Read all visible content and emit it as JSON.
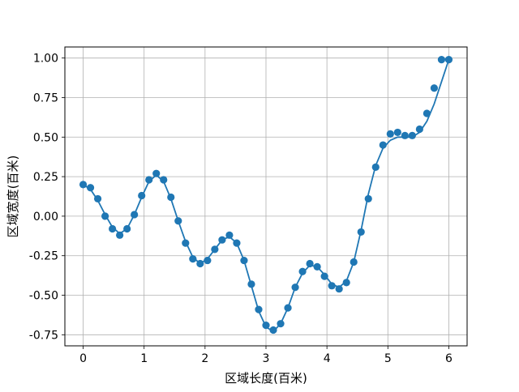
{
  "chart_data": {
    "type": "scatter",
    "title": "",
    "xlabel": "区域长度(百米)",
    "ylabel": "区域宽度(百米)",
    "xlim": [
      -0.3,
      6.3
    ],
    "ylim": [
      -0.82,
      1.07
    ],
    "grid": true,
    "xticks": [
      0,
      1,
      2,
      3,
      4,
      5,
      6
    ],
    "xtick_labels": [
      "0",
      "1",
      "2",
      "3",
      "4",
      "5",
      "6"
    ],
    "yticks": [
      1.0,
      0.75,
      0.5,
      0.25,
      0.0,
      -0.25,
      -0.5,
      -0.75
    ],
    "ytick_labels": [
      "1.00",
      "0.75",
      "0.50",
      "0.25",
      "0.00",
      "-0.25",
      "-0.50",
      "-0.75"
    ],
    "series": [
      {
        "kind": "scatter",
        "color": "#1f77b4",
        "x": [
          0.0,
          0.12,
          0.24,
          0.36,
          0.48,
          0.6,
          0.72,
          0.84,
          0.96,
          1.08,
          1.2,
          1.32,
          1.44,
          1.56,
          1.68,
          1.8,
          1.92,
          2.04,
          2.16,
          2.28,
          2.4,
          2.52,
          2.64,
          2.76,
          2.88,
          3.0,
          3.12,
          3.24,
          3.36,
          3.48,
          3.6,
          3.72,
          3.84,
          3.96,
          4.08,
          4.2,
          4.32,
          4.44,
          4.56,
          4.68,
          4.8,
          4.92,
          5.04,
          5.16,
          5.28,
          5.4,
          5.52,
          5.64,
          5.76,
          5.88,
          6.0
        ],
        "y": [
          0.2,
          0.18,
          0.11,
          0.0,
          -0.08,
          -0.12,
          -0.08,
          0.01,
          0.13,
          0.23,
          0.27,
          0.23,
          0.12,
          -0.03,
          -0.17,
          -0.27,
          -0.3,
          -0.28,
          -0.21,
          -0.15,
          -0.12,
          -0.17,
          -0.28,
          -0.43,
          -0.59,
          -0.69,
          -0.72,
          -0.68,
          -0.58,
          -0.45,
          -0.35,
          -0.3,
          -0.32,
          -0.38,
          -0.44,
          -0.46,
          -0.42,
          -0.29,
          -0.1,
          0.11,
          0.31,
          0.45,
          0.52,
          0.53,
          0.51,
          0.51,
          0.55,
          0.65,
          0.81,
          0.99,
          0.99
        ]
      },
      {
        "kind": "line",
        "color": "#1f77b4",
        "x": [
          0.0,
          0.12,
          0.24,
          0.36,
          0.48,
          0.6,
          0.72,
          0.84,
          0.96,
          1.08,
          1.2,
          1.32,
          1.44,
          1.56,
          1.68,
          1.8,
          1.92,
          2.04,
          2.16,
          2.28,
          2.4,
          2.52,
          2.64,
          2.76,
          2.88,
          3.0,
          3.12,
          3.24,
          3.36,
          3.48,
          3.6,
          3.72,
          3.84,
          3.96,
          4.08,
          4.2,
          4.32,
          4.44,
          4.56,
          4.68,
          4.8,
          4.92,
          5.04,
          5.16,
          5.28,
          5.4,
          5.52,
          5.64,
          5.76,
          5.88,
          6.0
        ],
        "y": [
          0.2,
          0.17,
          0.1,
          0.01,
          -0.07,
          -0.11,
          -0.08,
          0.01,
          0.12,
          0.22,
          0.26,
          0.22,
          0.11,
          -0.03,
          -0.16,
          -0.26,
          -0.3,
          -0.27,
          -0.21,
          -0.15,
          -0.13,
          -0.17,
          -0.28,
          -0.44,
          -0.6,
          -0.7,
          -0.73,
          -0.68,
          -0.58,
          -0.45,
          -0.36,
          -0.31,
          -0.32,
          -0.37,
          -0.43,
          -0.45,
          -0.41,
          -0.29,
          -0.09,
          0.14,
          0.32,
          0.43,
          0.48,
          0.5,
          0.5,
          0.5,
          0.53,
          0.6,
          0.71,
          0.85,
          0.99
        ]
      }
    ]
  }
}
